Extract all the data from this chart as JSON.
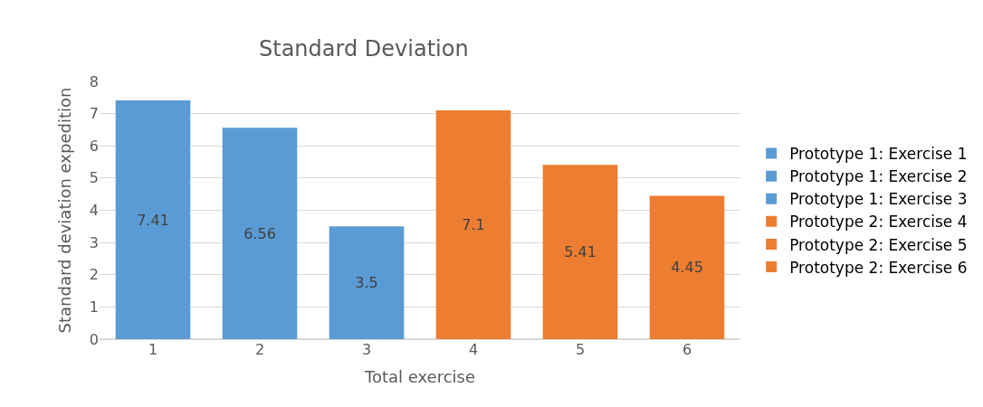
{
  "chart_data": {
    "type": "bar",
    "title": "Standard Deviation",
    "xlabel": "Total exercise",
    "ylabel": "Standard deviation expedition",
    "categories": [
      "1",
      "2",
      "3",
      "4",
      "5",
      "6"
    ],
    "series": [
      {
        "name": "Prototype 1: Exercise 1",
        "color": "#5b9bd5",
        "values": [
          7.41,
          null,
          null,
          null,
          null,
          null
        ]
      },
      {
        "name": "Prototype 1: Exercise 2",
        "color": "#5b9bd5",
        "values": [
          null,
          6.56,
          null,
          null,
          null,
          null
        ]
      },
      {
        "name": "Prototype 1: Exercise 3",
        "color": "#5b9bd5",
        "values": [
          null,
          null,
          3.5,
          null,
          null,
          null
        ]
      },
      {
        "name": "Prototype 2: Exercise 4",
        "color": "#ed7d31",
        "values": [
          null,
          null,
          null,
          7.1,
          null,
          null
        ]
      },
      {
        "name": "Prototype 2: Exercise 5",
        "color": "#ed7d31",
        "values": [
          null,
          null,
          null,
          null,
          5.41,
          null
        ]
      },
      {
        "name": "Prototype 2: Exercise 6",
        "color": "#ed7d31",
        "values": [
          null,
          null,
          null,
          null,
          null,
          4.45
        ]
      }
    ],
    "ylim": [
      0,
      8
    ],
    "yticks": [
      0,
      1,
      2,
      3,
      4,
      5,
      6,
      7,
      8
    ],
    "grid": "y",
    "legend": "right",
    "data_labels": true
  }
}
